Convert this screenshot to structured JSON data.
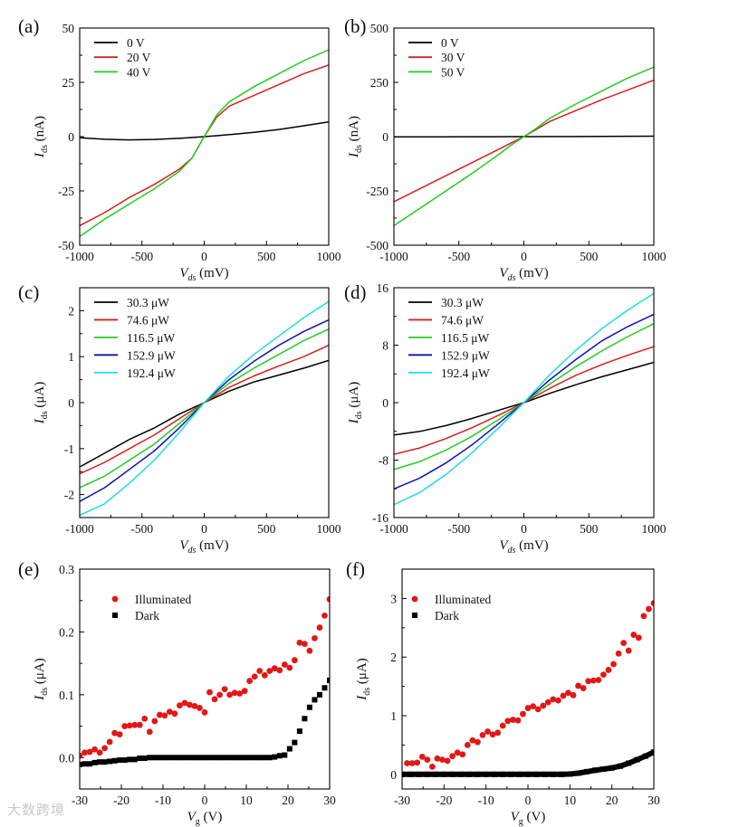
{
  "watermark": "大数跨境",
  "chart_data": [
    {
      "panel": "(a)",
      "type": "line",
      "xlabel": {
        "main": "V",
        "sub": "ds",
        "unit": " (mV)"
      },
      "ylabel": {
        "main": "I",
        "sub": "ds",
        "unit": " (nA)"
      },
      "xlim": [
        -1000,
        1000
      ],
      "ylim": [
        -50,
        50
      ],
      "xticks": [
        -1000,
        -500,
        0,
        500,
        1000
      ],
      "yticks": [
        -50,
        -25,
        0,
        25,
        50
      ],
      "legend": "top-left",
      "x": [
        -1000,
        -800,
        -600,
        -400,
        -200,
        -100,
        0,
        100,
        200,
        400,
        600,
        800,
        1000
      ],
      "series": [
        {
          "name": "0 V",
          "color": "#000000",
          "values": [
            -0.5,
            -1.2,
            -1.5,
            -1.3,
            -0.8,
            -0.4,
            0,
            0.4,
            0.9,
            2,
            3.3,
            5,
            6.8
          ]
        },
        {
          "name": "20 V",
          "color": "#d62020",
          "values": [
            -41,
            -35,
            -28,
            -22,
            -15,
            -10,
            0,
            9,
            14,
            19,
            24,
            29,
            33
          ]
        },
        {
          "name": "40 V",
          "color": "#22cc22",
          "values": [
            -46,
            -38,
            -31,
            -24,
            -16,
            -10,
            0,
            10,
            16,
            23,
            29,
            35,
            40
          ]
        }
      ]
    },
    {
      "panel": "(b)",
      "type": "line",
      "xlabel": {
        "main": "V",
        "sub": "ds",
        "unit": " (mV)"
      },
      "ylabel": {
        "main": "I",
        "sub": "ds",
        "unit": " (nA)"
      },
      "xlim": [
        -1000,
        1000
      ],
      "ylim": [
        -500,
        500
      ],
      "xticks": [
        -1000,
        -500,
        0,
        500,
        1000
      ],
      "yticks": [
        -500,
        -250,
        0,
        250,
        500
      ],
      "legend": "top-left",
      "x": [
        -1000,
        -800,
        -600,
        -400,
        -200,
        -100,
        0,
        100,
        200,
        400,
        600,
        800,
        1000
      ],
      "series": [
        {
          "name": "0 V",
          "color": "#000000",
          "values": [
            -1,
            -1,
            -1,
            -0.5,
            -0.3,
            0,
            0,
            0,
            0.3,
            0.6,
            1,
            1.5,
            2
          ]
        },
        {
          "name": "30 V",
          "color": "#d62020",
          "values": [
            -300,
            -240,
            -180,
            -120,
            -60,
            -30,
            0,
            35,
            70,
            120,
            170,
            215,
            260
          ]
        },
        {
          "name": "50 V",
          "color": "#22cc22",
          "values": [
            -410,
            -330,
            -250,
            -170,
            -85,
            -40,
            0,
            40,
            85,
            150,
            210,
            270,
            320
          ]
        }
      ]
    },
    {
      "panel": "(c)",
      "type": "line",
      "xlabel": {
        "main": "V",
        "sub": "ds",
        "unit": " (mV)"
      },
      "ylabel": {
        "main": "I",
        "sub": "ds",
        "unit": " (μA)"
      },
      "xlim": [
        -1000,
        1000
      ],
      "ylim": [
        -2.5,
        2.5
      ],
      "xticks": [
        -1000,
        -500,
        0,
        500,
        1000
      ],
      "yticks": [
        -2,
        -1,
        0,
        1,
        2
      ],
      "legend": "top-left",
      "x": [
        -1000,
        -800,
        -600,
        -400,
        -200,
        0,
        200,
        400,
        600,
        800,
        1000
      ],
      "series": [
        {
          "name": "30.3 μW",
          "color": "#000000",
          "values": [
            -1.4,
            -1.1,
            -0.8,
            -0.55,
            -0.25,
            0,
            0.25,
            0.45,
            0.6,
            0.75,
            0.92
          ]
        },
        {
          "name": "74.6 μW",
          "color": "#d62020",
          "values": [
            -1.55,
            -1.3,
            -1.0,
            -0.7,
            -0.35,
            0,
            0.33,
            0.58,
            0.8,
            1.0,
            1.25
          ]
        },
        {
          "name": "116.5 μW",
          "color": "#22cc22",
          "values": [
            -1.85,
            -1.6,
            -1.25,
            -0.9,
            -0.45,
            0,
            0.42,
            0.75,
            1.05,
            1.35,
            1.6
          ]
        },
        {
          "name": "152.9 μW",
          "color": "#1010b0",
          "values": [
            -2.15,
            -1.85,
            -1.45,
            -1.05,
            -0.55,
            0,
            0.5,
            0.9,
            1.25,
            1.55,
            1.8
          ]
        },
        {
          "name": "192.4 μW",
          "color": "#22d8e8",
          "values": [
            -2.45,
            -2.2,
            -1.75,
            -1.25,
            -0.65,
            0,
            0.58,
            1.05,
            1.45,
            1.85,
            2.2
          ]
        }
      ]
    },
    {
      "panel": "(d)",
      "type": "line",
      "xlabel": {
        "main": "V",
        "sub": "ds",
        "unit": " (mV)"
      },
      "ylabel": {
        "main": "I",
        "sub": "ds",
        "unit": " (μA)"
      },
      "xlim": [
        -1000,
        1000
      ],
      "ylim": [
        -16,
        16
      ],
      "xticks": [
        -1000,
        -500,
        0,
        500,
        1000
      ],
      "yticks": [
        -16,
        -8,
        0,
        8,
        16
      ],
      "legend": "top-left",
      "x": [
        -1000,
        -800,
        -600,
        -400,
        -200,
        0,
        200,
        400,
        600,
        800,
        1000
      ],
      "series": [
        {
          "name": "30.3 μW",
          "color": "#000000",
          "values": [
            -4.5,
            -4.0,
            -3.2,
            -2.2,
            -1.1,
            0,
            1.3,
            2.5,
            3.6,
            4.6,
            5.6
          ]
        },
        {
          "name": "74.6 μW",
          "color": "#d62020",
          "values": [
            -7.2,
            -6.3,
            -5.0,
            -3.5,
            -1.8,
            0,
            2.0,
            3.8,
            5.3,
            6.6,
            7.8
          ]
        },
        {
          "name": "116.5 μW",
          "color": "#22cc22",
          "values": [
            -9.3,
            -8.2,
            -6.6,
            -4.7,
            -2.4,
            0,
            2.6,
            5.0,
            7.2,
            9.2,
            11.0
          ]
        },
        {
          "name": "152.9 μW",
          "color": "#1010b0",
          "values": [
            -12,
            -10.5,
            -8.4,
            -5.9,
            -3.0,
            0,
            3.2,
            6.0,
            8.6,
            10.6,
            12.3
          ]
        },
        {
          "name": "192.4 μW",
          "color": "#22d8e8",
          "values": [
            -14.2,
            -12.5,
            -10,
            -7,
            -3.6,
            0,
            3.9,
            7.3,
            10.3,
            12.9,
            15.2
          ]
        }
      ]
    },
    {
      "panel": "(e)",
      "type": "scatter",
      "xlabel": {
        "main": "V",
        "sub": "g",
        "unit": " (V)"
      },
      "ylabel": {
        "main": "I",
        "sub": "ds",
        "unit": " (μA)"
      },
      "xlim": [
        -30,
        30
      ],
      "ylim": [
        -0.05,
        0.3
      ],
      "xticks": [
        -30,
        -20,
        -10,
        0,
        10,
        20,
        30
      ],
      "yticks": [
        0.0,
        0.1,
        0.2,
        0.3
      ],
      "ytick_labels": [
        "0.0",
        "0.1",
        "0.2",
        "0.3"
      ],
      "legend": "top-left",
      "x": [
        -30,
        -28.8,
        -27.6,
        -26.4,
        -25.2,
        -24,
        -22.8,
        -21.6,
        -20.4,
        -19.2,
        -18,
        -16.8,
        -15.6,
        -14.4,
        -13.2,
        -12,
        -10.8,
        -9.6,
        -8.4,
        -7.2,
        -6,
        -4.8,
        -3.6,
        -2.4,
        -1.2,
        0,
        1.2,
        2.4,
        3.6,
        4.8,
        6,
        7.2,
        8.4,
        9.6,
        10.8,
        12,
        13.2,
        14.4,
        15.6,
        16.8,
        18,
        19.2,
        20.4,
        21.6,
        22.8,
        24,
        25.2,
        26.4,
        27.6,
        28.8,
        30
      ],
      "series": [
        {
          "name": "Illuminated",
          "marker": "circle",
          "color": "#e01818",
          "values": [
            0.003,
            0.008,
            0.009,
            0.013,
            0.008,
            0.015,
            0.025,
            0.039,
            0.037,
            0.05,
            0.051,
            0.052,
            0.052,
            0.062,
            0.041,
            0.058,
            0.068,
            0.067,
            0.073,
            0.07,
            0.083,
            0.087,
            0.084,
            0.082,
            0.079,
            0.072,
            0.104,
            0.093,
            0.1,
            0.109,
            0.1,
            0.103,
            0.102,
            0.106,
            0.122,
            0.129,
            0.138,
            0.131,
            0.138,
            0.142,
            0.139,
            0.148,
            0.143,
            0.155,
            0.183,
            0.181,
            0.17,
            0.19,
            0.207,
            0.226,
            0.252
          ]
        },
        {
          "name": "Dark",
          "marker": "square",
          "color": "#000000",
          "values": [
            -0.011,
            -0.01,
            -0.01,
            -0.008,
            -0.007,
            -0.007,
            -0.006,
            -0.005,
            -0.004,
            -0.004,
            -0.003,
            -0.003,
            -0.001,
            -0.001,
            0,
            0,
            0,
            0,
            0,
            0,
            0,
            0,
            0,
            0,
            0,
            0,
            0,
            0,
            0,
            0,
            0,
            0,
            0,
            0,
            0,
            0,
            0,
            0,
            0,
            0.001,
            0.003,
            0.004,
            0.014,
            0.024,
            0.042,
            0.062,
            0.08,
            0.092,
            0.1,
            0.111,
            0.123
          ]
        }
      ]
    },
    {
      "panel": "(f)",
      "type": "scatter",
      "xlabel": {
        "main": "V",
        "sub": "g",
        "unit": " (V)"
      },
      "ylabel": {
        "main": "I",
        "sub": "ds",
        "unit": " (μA)"
      },
      "xlim": [
        -30,
        30
      ],
      "ylim": [
        -0.25,
        3.5
      ],
      "xticks": [
        -30,
        -20,
        -10,
        0,
        10,
        20,
        30
      ],
      "yticks": [
        0,
        1,
        2,
        3
      ],
      "legend": "top-left",
      "series": [
        {
          "name": "Illuminated",
          "marker": "circle",
          "color": "#e01818",
          "x": [
            -28.8,
            -27.6,
            -26.4,
            -25.2,
            -24,
            -22.8,
            -21.6,
            -20.4,
            -19.2,
            -18,
            -16.8,
            -15.6,
            -14.4,
            -13.2,
            -12,
            -10.8,
            -9.6,
            -8.4,
            -7.2,
            -6,
            -4.8,
            -3.6,
            -2.4,
            -1.2,
            0,
            1.2,
            2.4,
            3.6,
            4.8,
            6,
            7.2,
            8.4,
            9.6,
            10.8,
            12,
            13.2,
            14.4,
            15.6,
            16.8,
            18,
            19.2,
            20.4,
            21.6,
            22.8,
            24,
            25.2,
            26.4,
            27.6,
            28.8,
            30
          ],
          "values": [
            0.19,
            0.19,
            0.2,
            0.3,
            0.25,
            0.13,
            0.27,
            0.25,
            0.23,
            0.31,
            0.37,
            0.34,
            0.5,
            0.58,
            0.55,
            0.67,
            0.73,
            0.68,
            0.71,
            0.83,
            0.91,
            0.93,
            0.92,
            1.03,
            1.13,
            1.16,
            1.11,
            1.17,
            1.23,
            1.28,
            1.26,
            1.34,
            1.39,
            1.35,
            1.51,
            1.47,
            1.59,
            1.6,
            1.61,
            1.7,
            1.78,
            1.88,
            2.06,
            2.24,
            2.11,
            2.38,
            2.33,
            2.7,
            2.82,
            2.92
          ]
        },
        {
          "name": "Dark",
          "marker": "square",
          "color": "#000000",
          "x": [
            -30,
            -28,
            -26,
            -24,
            -22,
            -20,
            -18,
            -16,
            -14,
            -12,
            -10,
            -8,
            -6,
            -4,
            -2,
            0,
            2,
            4,
            6,
            8,
            10,
            12,
            14,
            16,
            18,
            20,
            22,
            24,
            26,
            28,
            30
          ],
          "values": [
            0,
            0,
            0,
            0,
            0,
            0,
            0,
            0,
            0,
            0,
            0,
            0,
            0,
            0,
            0,
            0,
            0,
            0,
            0,
            0,
            0.005,
            0.02,
            0.045,
            0.07,
            0.09,
            0.11,
            0.14,
            0.19,
            0.25,
            0.31,
            0.38
          ]
        }
      ]
    }
  ]
}
